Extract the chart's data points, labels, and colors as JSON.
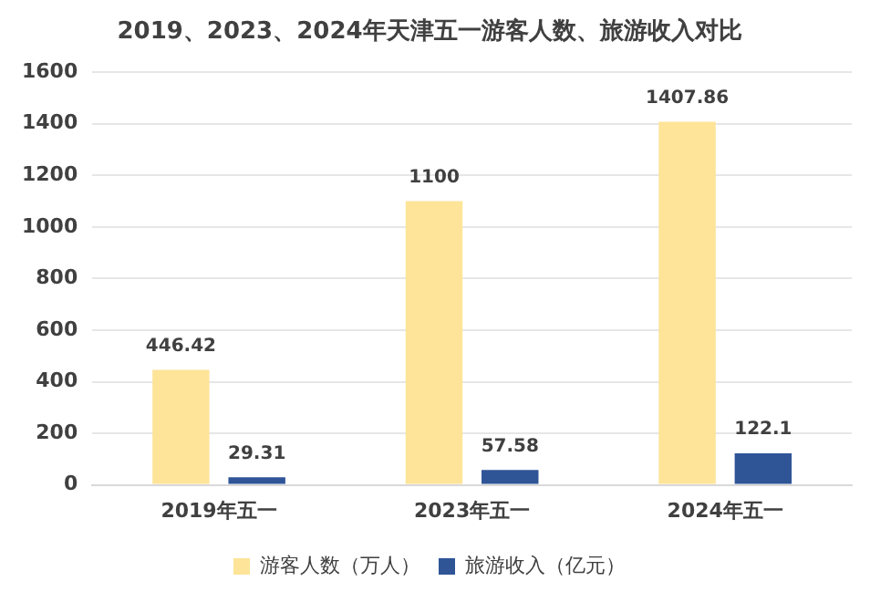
{
  "chart_data": {
    "type": "bar",
    "title": "2019、2023、2024年天津五一游客人数、旅游收入对比",
    "categories": [
      "2019年五一",
      "2023年五一",
      "2024年五一"
    ],
    "series": [
      {
        "name": "游客人数（万人）",
        "color": "#fde498",
        "values": [
          446.42,
          1100,
          1407.86
        ]
      },
      {
        "name": "旅游收入（亿元）",
        "color": "#2f5597",
        "values": [
          29.31,
          57.58,
          122.1
        ]
      }
    ],
    "ylim": [
      0,
      1600
    ],
    "yticks": [
      0,
      200,
      400,
      600,
      800,
      1000,
      1200,
      1400,
      1600
    ],
    "grid": "y",
    "legend": "bottom",
    "data_labels": true
  }
}
